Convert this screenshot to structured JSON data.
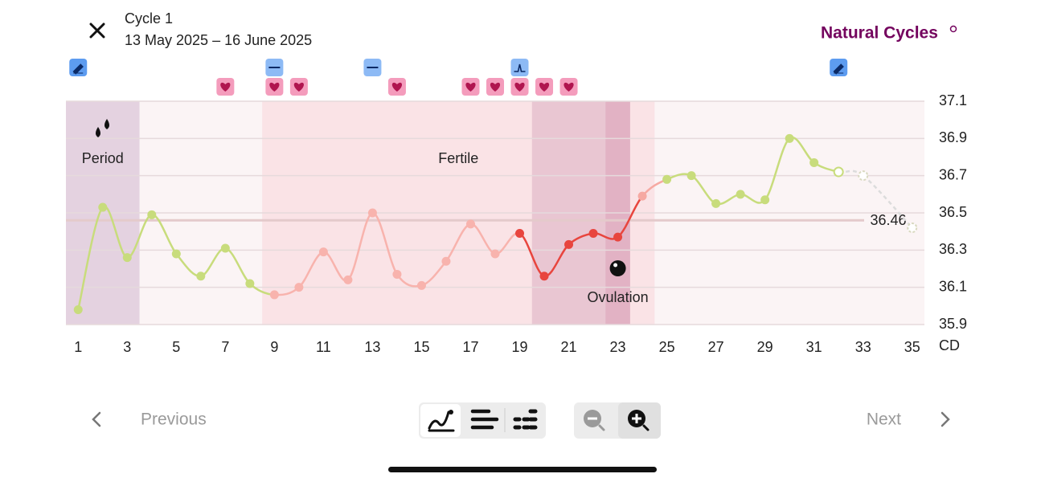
{
  "header": {
    "title": "Cycle 1",
    "dates": "13 May 2025 – 16 June 2025",
    "logo": "Natural Cycles"
  },
  "chart_data": {
    "type": "line",
    "x": [
      1,
      2,
      3,
      4,
      5,
      6,
      7,
      8,
      9,
      10,
      11,
      12,
      13,
      14,
      15,
      16,
      17,
      18,
      19,
      20,
      21,
      22,
      23,
      24,
      25,
      26,
      27,
      28,
      29,
      30,
      31,
      32,
      33,
      35
    ],
    "values": [
      35.98,
      36.53,
      36.26,
      36.49,
      36.28,
      36.16,
      36.31,
      36.12,
      36.06,
      36.1,
      36.29,
      36.14,
      36.5,
      36.17,
      36.11,
      36.24,
      36.44,
      36.28,
      36.39,
      36.16,
      36.33,
      36.39,
      36.37,
      36.59,
      36.68,
      36.7,
      36.55,
      36.6,
      36.57,
      36.9,
      36.77,
      36.72,
      36.7,
      36.42
    ],
    "point_colors": [
      "#c8dc7c",
      "#c8dc7c",
      "#c8dc7c",
      "#c8dc7c",
      "#c8dc7c",
      "#c8dc7c",
      "#c8dc7c",
      "#c8dc7c",
      "#f8b3ad",
      "#f8b3ad",
      "#f8b3ad",
      "#f8b3ad",
      "#f8b3ad",
      "#f8b3ad",
      "#f8b3ad",
      "#f8b3ad",
      "#f8b3ad",
      "#f8b3ad",
      "#e8453e",
      "#e8453e",
      "#e8453e",
      "#e8453e",
      "#e8453e",
      "#f6a9a2",
      "#c8dc7c",
      "#c8dc7c",
      "#c8dc7c",
      "#c8dc7c",
      "#c8dc7c",
      "#c8dc7c",
      "#c8dc7c",
      "#c8dc7c",
      "#d9d9c0",
      "#d9d9c0"
    ],
    "point_styles": [
      "filled",
      "filled",
      "filled",
      "filled",
      "filled",
      "filled",
      "filled",
      "filled",
      "filled",
      "filled",
      "filled",
      "filled",
      "filled",
      "filled",
      "filled",
      "filled",
      "filled",
      "filled",
      "filled",
      "filled",
      "filled",
      "filled",
      "filled",
      "filled",
      "filled",
      "filled",
      "filled",
      "filled",
      "filled",
      "filled",
      "filled",
      "hollow",
      "dashed",
      "dashed"
    ],
    "xlim": [
      0.5,
      35.5
    ],
    "xticks": [
      1,
      3,
      5,
      7,
      9,
      11,
      13,
      15,
      17,
      19,
      21,
      23,
      25,
      27,
      29,
      31,
      33,
      35
    ],
    "x_unit": "CD",
    "ylim": [
      35.9,
      37.1
    ],
    "yticks": [
      35.9,
      36.1,
      36.3,
      36.5,
      36.7,
      36.9,
      37.1
    ],
    "grid": true,
    "coverline": {
      "value": 36.46
    },
    "phases": [
      {
        "label": "Period",
        "from": 1,
        "to": 3,
        "color": "#e4d2e0"
      },
      {
        "label": "Fertile",
        "from": 9,
        "to": 24,
        "color": "#fae3e6"
      },
      {
        "from": 20,
        "to": 23,
        "color": "#e9c6d2"
      },
      {
        "label": "Ovulation",
        "from": 23,
        "to": 23,
        "color": "#e2b2c4"
      }
    ],
    "note_days": [
      1,
      32
    ],
    "minus_days": [
      9,
      13
    ],
    "test_days": [
      19
    ],
    "heart_days": [
      7,
      9,
      10,
      14,
      17,
      18,
      19,
      20,
      21
    ]
  },
  "footer": {
    "previous": "Previous",
    "next": "Next"
  }
}
